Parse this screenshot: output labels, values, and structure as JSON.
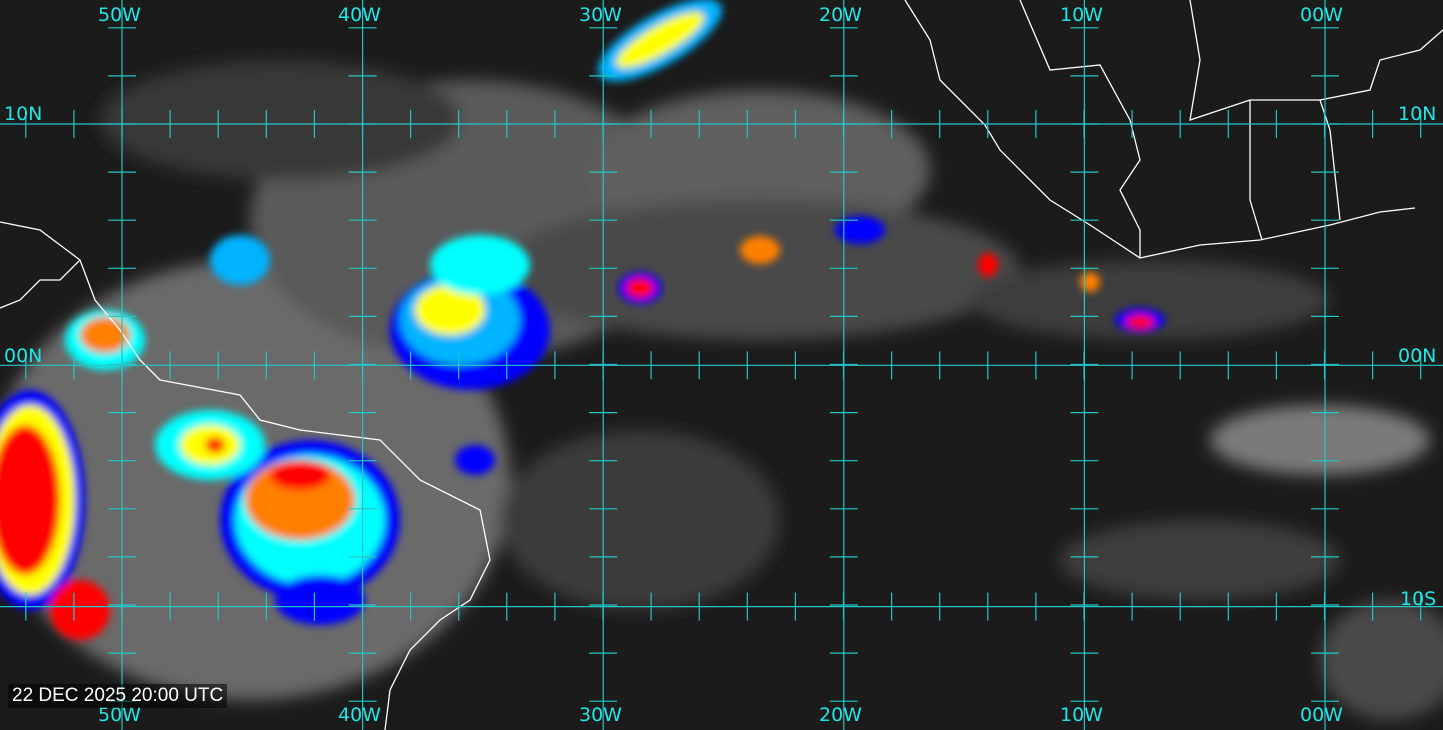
{
  "timestamp": "22 DEC 2025 20:00 UTC",
  "grid_color": "#22c8c8",
  "label_color": "#22e5e5",
  "coastline_color": "#ffffff",
  "longitude_labels_top": [
    "50W",
    "40W",
    "30W",
    "20W",
    "10W",
    "00W"
  ],
  "longitude_labels_bottom": [
    "50W",
    "40W",
    "30W",
    "20W",
    "10W",
    "00W"
  ],
  "latitude_labels_left": [
    "10N",
    "00N"
  ],
  "latitude_labels_right": [
    "10N",
    "00N",
    "10S"
  ],
  "enhancement_colors": [
    "#0000ff",
    "#00b4ff",
    "#00ffff",
    "#ffff00",
    "#ff8000",
    "#ff0000",
    "#8b0000"
  ]
}
